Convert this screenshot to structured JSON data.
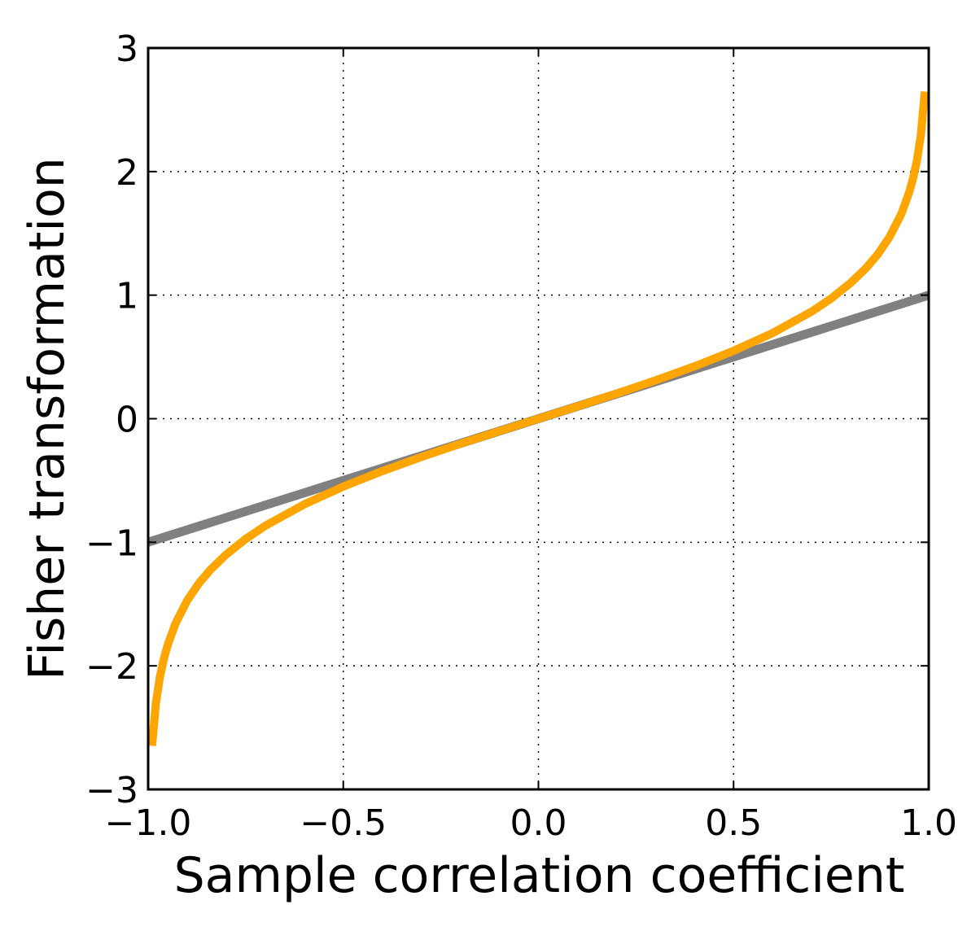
{
  "chart_data": {
    "type": "line",
    "title": "",
    "xlabel": "Sample correlation coefficient",
    "ylabel": "Fisher transformation",
    "xlim": [
      -1.0,
      1.0
    ],
    "ylim": [
      -3,
      3
    ],
    "grid": true,
    "legend": "none",
    "x_ticks": [
      -1.0,
      -0.5,
      0.0,
      0.5,
      1.0
    ],
    "x_tick_labels": [
      "−1.0",
      "−0.5",
      "0.0",
      "0.5",
      "1.0"
    ],
    "y_ticks": [
      -3,
      -2,
      -1,
      0,
      1,
      2,
      3
    ],
    "y_tick_labels": [
      "−3",
      "−2",
      "−1",
      "0",
      "1",
      "2",
      "3"
    ],
    "series": [
      {
        "color": "#808080",
        "x": [
          -1.0,
          1.0
        ],
        "y": [
          -1.0,
          1.0
        ]
      },
      {
        "color": "#FFA500",
        "x": [
          -0.99,
          -0.98,
          -0.97,
          -0.96,
          -0.95,
          -0.93,
          -0.9,
          -0.87,
          -0.84,
          -0.8,
          -0.75,
          -0.7,
          -0.6,
          -0.5,
          -0.4,
          -0.3,
          -0.2,
          -0.1,
          0.0,
          0.1,
          0.2,
          0.3,
          0.4,
          0.5,
          0.6,
          0.7,
          0.75,
          0.8,
          0.84,
          0.87,
          0.9,
          0.93,
          0.95,
          0.96,
          0.97,
          0.98,
          0.99
        ],
        "y": [
          -2.647,
          -2.298,
          -2.092,
          -1.946,
          -1.832,
          -1.658,
          -1.472,
          -1.333,
          -1.221,
          -1.099,
          -0.973,
          -0.867,
          -0.693,
          -0.549,
          -0.424,
          -0.31,
          -0.203,
          -0.1,
          0.0,
          0.1,
          0.203,
          0.31,
          0.424,
          0.549,
          0.693,
          0.867,
          0.973,
          1.099,
          1.221,
          1.333,
          1.472,
          1.658,
          1.832,
          1.946,
          2.092,
          2.298,
          2.647
        ]
      }
    ]
  }
}
